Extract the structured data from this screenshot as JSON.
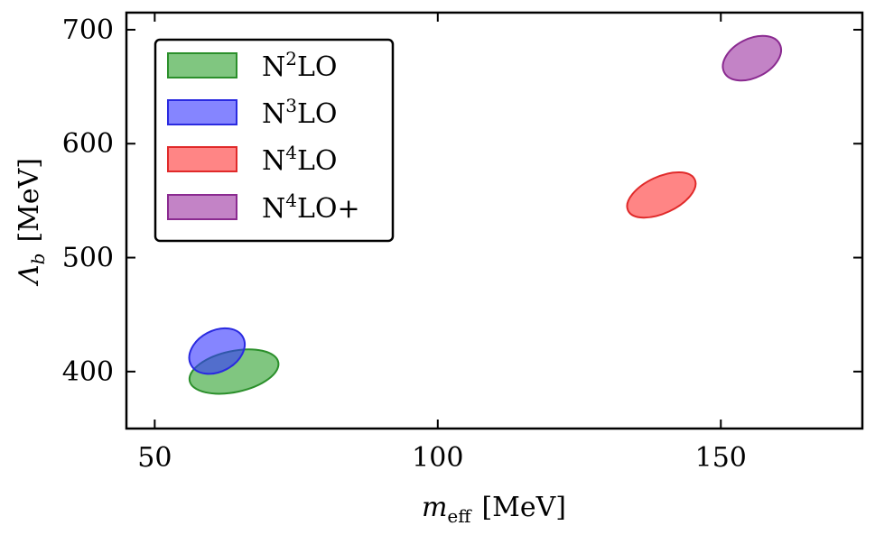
{
  "chart_data": {
    "type": "scatter",
    "title": "",
    "xlabel": "m_eff [MeV]",
    "xlabel_main": "m",
    "xlabel_sub": "eff",
    "xlabel_unit": "[MeV]",
    "ylabel": "Λ_b [MeV]",
    "ylabel_main": "Λ",
    "ylabel_sub": "b",
    "ylabel_unit": "[MeV]",
    "xlim": [
      45,
      175
    ],
    "ylim": [
      350,
      715
    ],
    "xticks": [
      50,
      100,
      150
    ],
    "yticks": [
      400,
      500,
      600,
      700
    ],
    "xtick_labels": [
      "50",
      "100",
      "150"
    ],
    "ytick_labels": [
      "400",
      "500",
      "600",
      "700"
    ],
    "legend_position": "top-left",
    "series": [
      {
        "name": "N²LO",
        "base": "N",
        "sup": "2",
        "rest": "LO",
        "color": "#2ca02c",
        "edge": "#2b8f2b",
        "center": [
          64.0,
          400
        ],
        "rx": 8.0,
        "ry": 18,
        "angle_deg": -12
      },
      {
        "name": "N³LO",
        "base": "N",
        "sup": "3",
        "rest": "LO",
        "color": "#3333ff",
        "edge": "#2a2ae0",
        "center": [
          61.0,
          418
        ],
        "rx": 5.2,
        "ry": 18,
        "angle_deg": -28
      },
      {
        "name": "N⁴LO",
        "base": "N",
        "sup": "4",
        "rest": "LO",
        "color": "#ff3333",
        "edge": "#e02a2a",
        "center": [
          139.5,
          555
        ],
        "rx": 6.5,
        "ry": 16,
        "angle_deg": -25
      },
      {
        "name": "N⁴LO+",
        "base": "N",
        "sup": "4",
        "rest": "LO+",
        "color": "#9b30a0",
        "edge": "#8a2a90",
        "center": [
          155.5,
          675
        ],
        "rx": 5.5,
        "ry": 17,
        "angle_deg": -27
      }
    ]
  }
}
